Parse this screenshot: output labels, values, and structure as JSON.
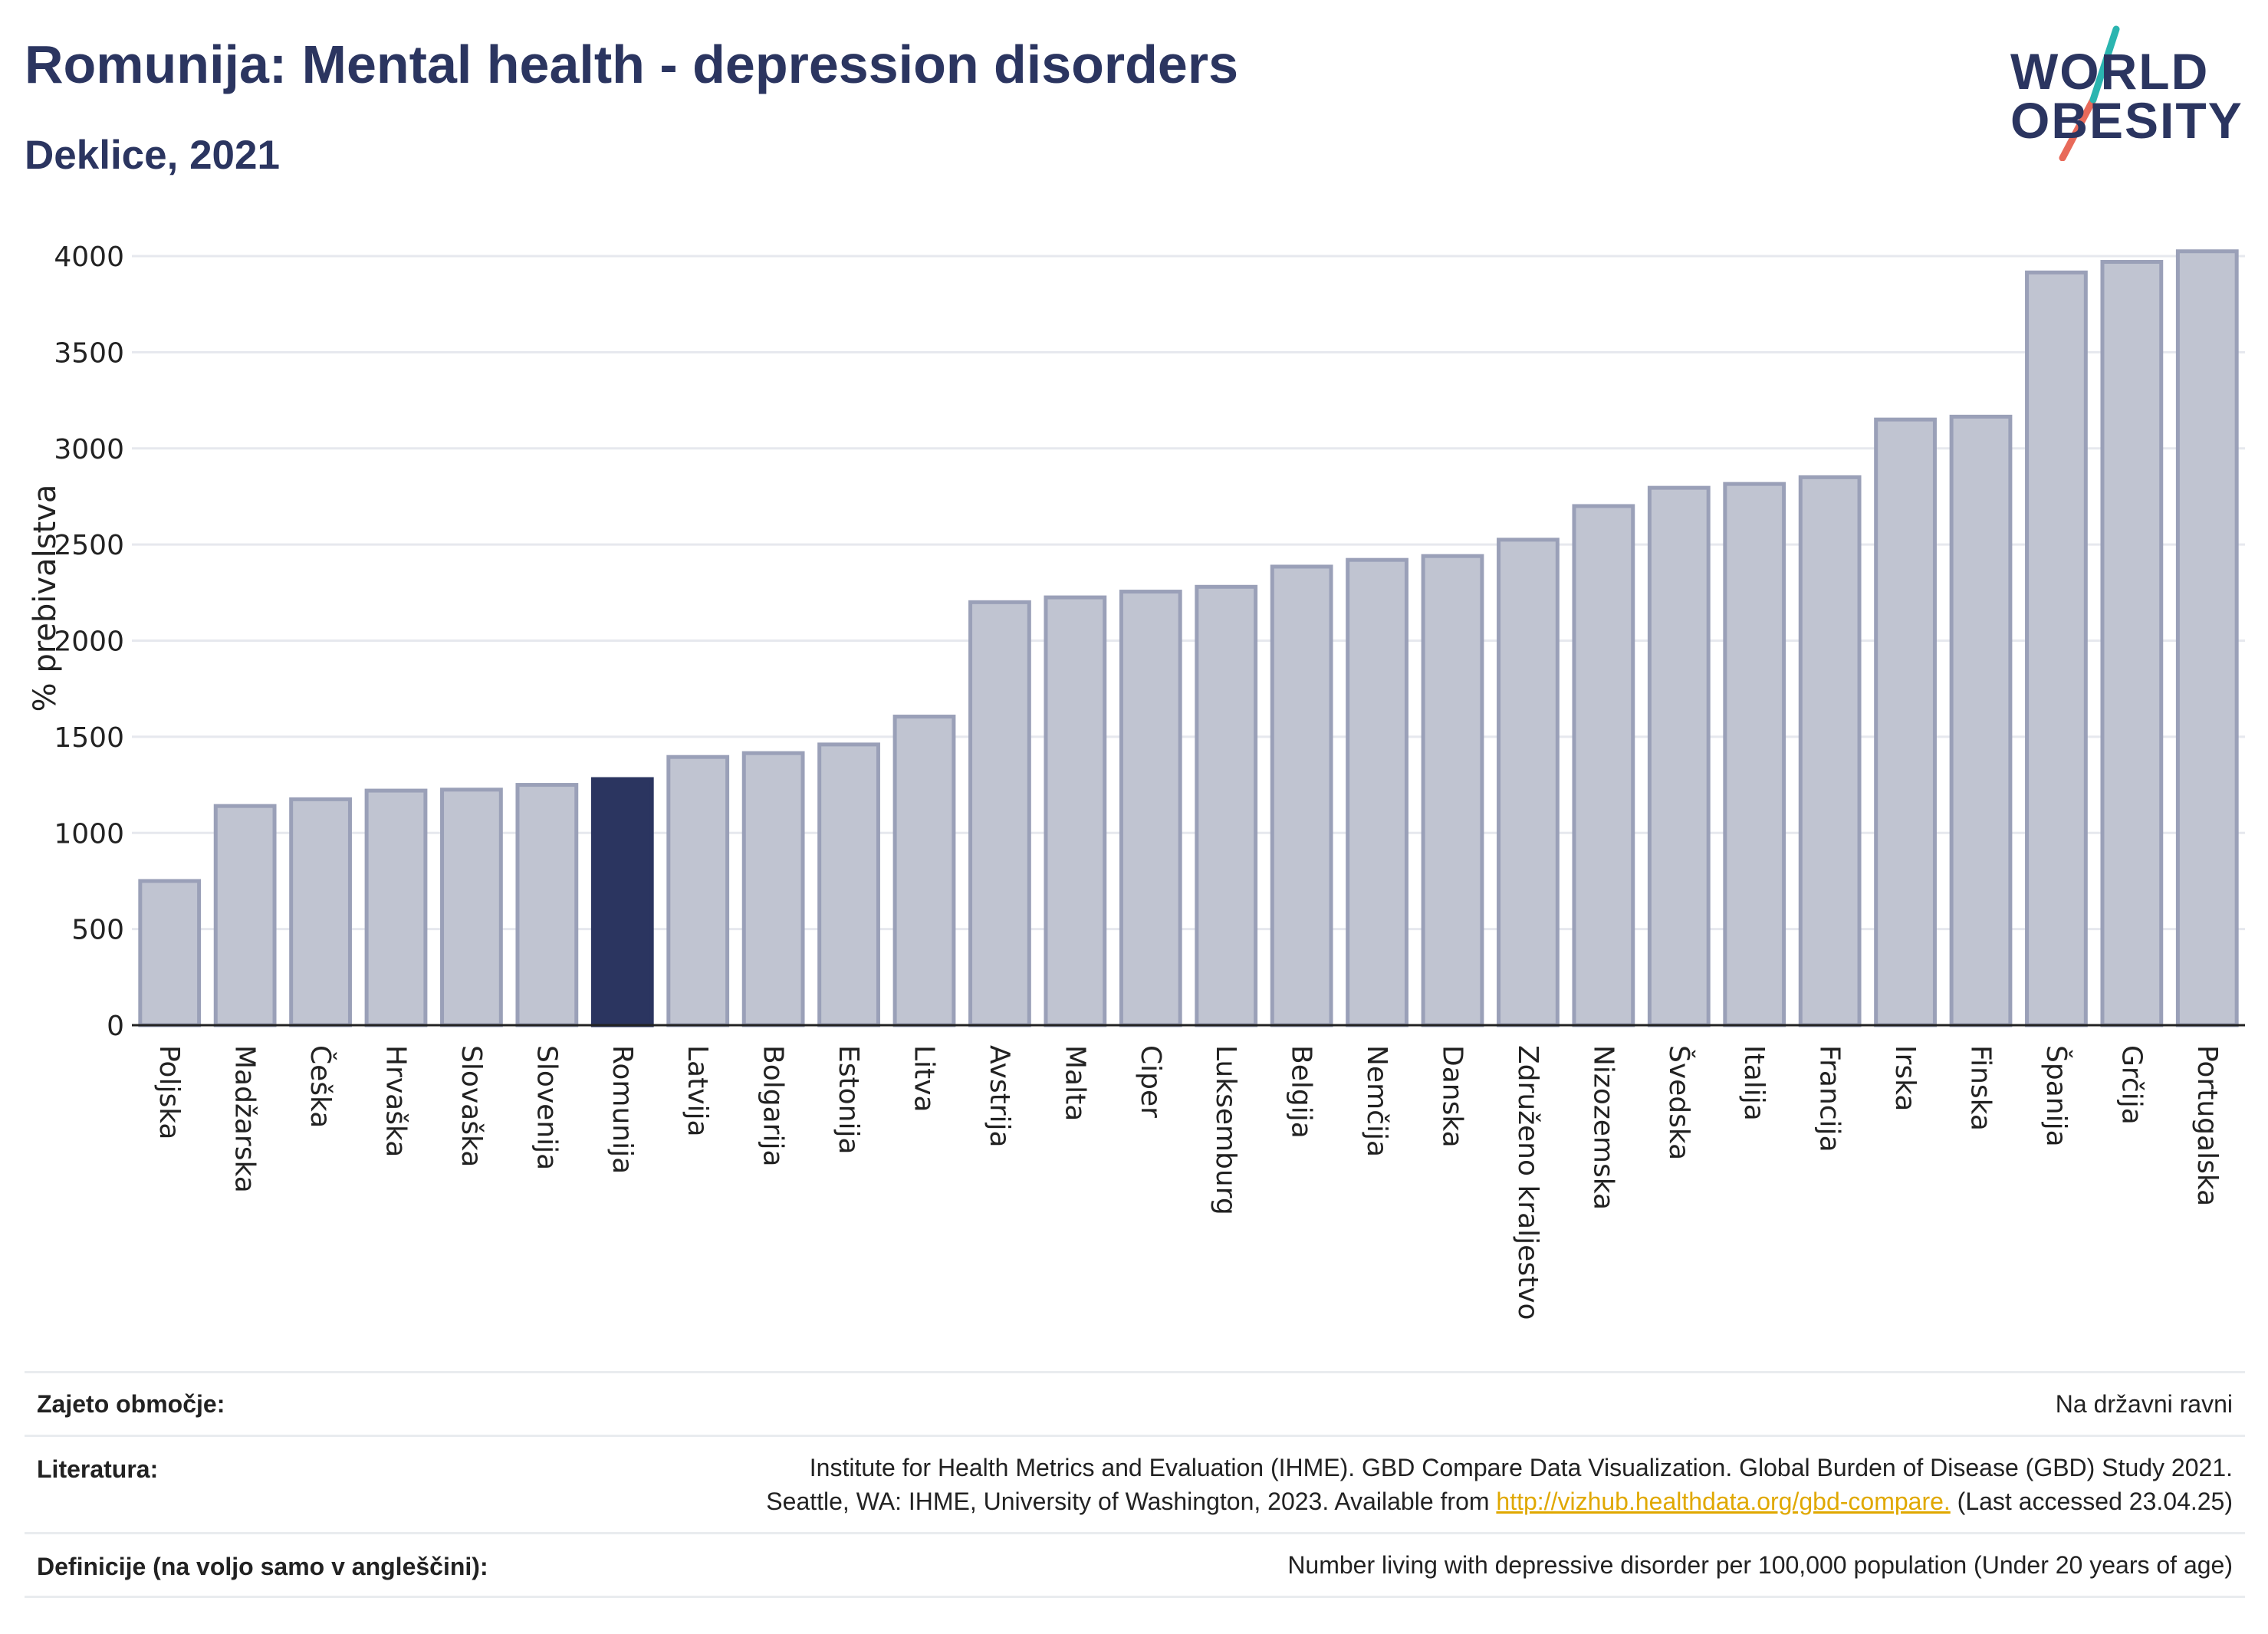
{
  "header": {
    "title": "Romunija: Mental health - depression disorders",
    "subtitle": "Deklice, 2021"
  },
  "logo": {
    "line1": "WORLD",
    "line2": "OBESITY",
    "colors": {
      "text": "#2b3560",
      "slash_top": "#2bb5b0",
      "slash_bottom": "#e86a5a"
    }
  },
  "colors": {
    "bar": "#c0c4d1",
    "bar_stroke": "#9aa0b8",
    "highlight": "#2b3560",
    "grid": "#e6e8ee",
    "axis": "#222222",
    "link": "#e0a800"
  },
  "chart_data": {
    "type": "bar",
    "title": "Romunija: Mental health - depression disorders",
    "subtitle": "Deklice, 2021",
    "xlabel": "",
    "ylabel": "% prebivalstva",
    "ylim": [
      0,
      4100
    ],
    "yticks": [
      0,
      500,
      1000,
      1500,
      2000,
      2500,
      3000,
      3500,
      4000
    ],
    "grid": true,
    "highlight": "Romunija",
    "categories": [
      "Poljska",
      "Madžarska",
      "Češka",
      "Hrvaška",
      "Slovaška",
      "Slovenija",
      "Romunija",
      "Latvija",
      "Bolgarija",
      "Estonija",
      "Litva",
      "Avstrija",
      "Malta",
      "Ciper",
      "Luksemburg",
      "Belgija",
      "Nemčija",
      "Danska",
      "Združeno kraljestvo",
      "Nizozemska",
      "Švedska",
      "Italija",
      "Francija",
      "Irska",
      "Finska",
      "Španija",
      "Grčija",
      "Portugalska"
    ],
    "values": [
      750,
      1140,
      1175,
      1220,
      1225,
      1250,
      1280,
      1395,
      1415,
      1460,
      1605,
      2200,
      2225,
      2255,
      2280,
      2385,
      2420,
      2440,
      2525,
      2700,
      2795,
      2815,
      2850,
      3150,
      3165,
      3915,
      3970,
      4025
    ]
  },
  "footer": {
    "coverage_label": "Zajeto območje:",
    "coverage_value": "Na državni ravni",
    "references_label": "Literatura:",
    "references_line1": "Institute for Health Metrics and Evaluation (IHME). GBD Compare Data Visualization. Global Burden of Disease (GBD) Study 2021.",
    "references_line2_pre": "Seattle, WA: IHME, University of Washington, 2023. Available from ",
    "references_link": "http://vizhub.healthdata.org/gbd-compare.",
    "references_line2_post": " (Last accessed 23.04.25)",
    "definitions_label": "Definicije (na voljo samo v angleščini):",
    "definitions_value": "Number living with depressive disorder per 100,000 population (Under 20 years of age)"
  }
}
